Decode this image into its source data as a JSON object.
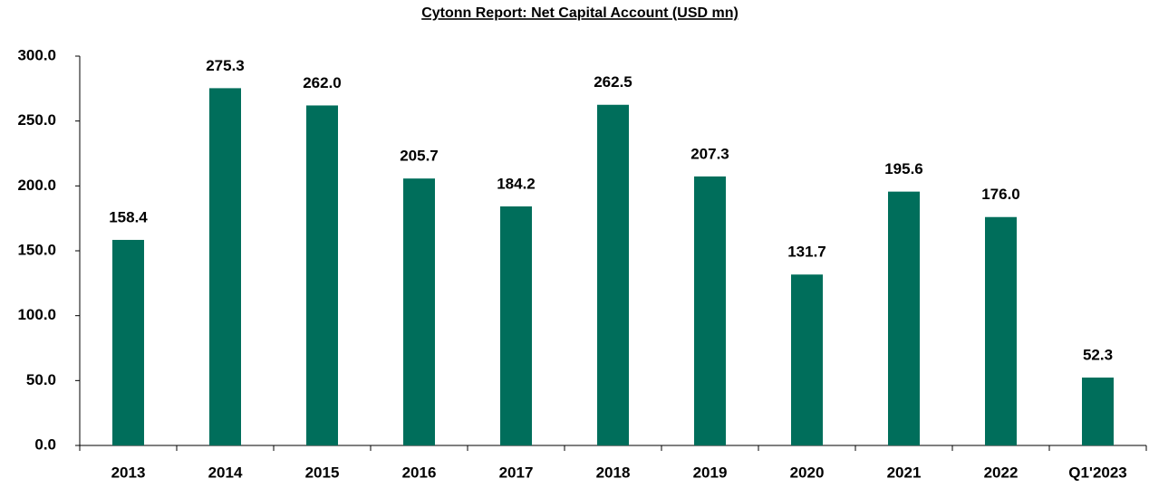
{
  "chart_data": {
    "type": "bar",
    "title": "Cytonn Report: Net Capital Account (USD mn)",
    "categories": [
      "2013",
      "2014",
      "2015",
      "2016",
      "2017",
      "2018",
      "2019",
      "2020",
      "2021",
      "2022",
      "Q1'2023"
    ],
    "values": [
      158.4,
      275.3,
      262.0,
      205.7,
      184.2,
      262.5,
      207.3,
      131.7,
      195.6,
      176.0,
      52.3
    ],
    "value_labels": [
      "158.4",
      "275.3",
      "262.0",
      "205.7",
      "184.2",
      "262.5",
      "207.3",
      "131.7",
      "195.6",
      "176.0",
      "52.3"
    ],
    "color": "#006e5b",
    "ylim": [
      0,
      300
    ],
    "yticks": [
      {
        "value": 0,
        "label": "0.0"
      },
      {
        "value": 50,
        "label": "50.0"
      },
      {
        "value": 100,
        "label": "100.0"
      },
      {
        "value": 150,
        "label": "150.0"
      },
      {
        "value": 200,
        "label": "200.0"
      },
      {
        "value": 250,
        "label": "250.0"
      },
      {
        "value": 300,
        "label": "300.0"
      }
    ],
    "grid": false
  }
}
